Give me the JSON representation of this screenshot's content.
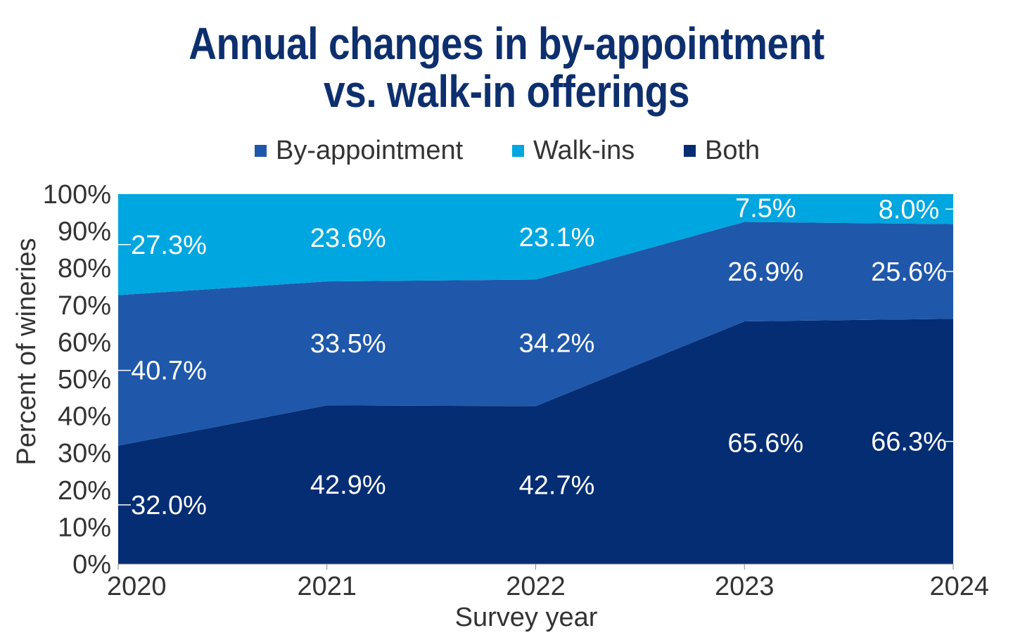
{
  "chart_data": {
    "type": "area",
    "stacked": true,
    "title": [
      "Annual changes in by-appointment",
      "vs. walk-in offerings"
    ],
    "xlabel": "Survey year",
    "ylabel": "Percent of wineries",
    "categories": [
      "2020",
      "2021",
      "2022",
      "2023",
      "2024"
    ],
    "ylim": [
      0,
      100
    ],
    "yticks": [
      "0%",
      "10%",
      "20%",
      "30%",
      "40%",
      "50%",
      "60%",
      "70%",
      "80%",
      "90%",
      "100%"
    ],
    "legend_position": "top",
    "series": [
      {
        "name": "Both",
        "color": "#052d74",
        "values": [
          32.0,
          42.9,
          42.7,
          65.6,
          66.3
        ],
        "labels": [
          "32.0%",
          "42.9%",
          "42.7%",
          "65.6%",
          "66.3%"
        ]
      },
      {
        "name": "By-appointment",
        "color": "#1f58aa",
        "values": [
          40.7,
          33.5,
          34.2,
          26.9,
          25.6
        ],
        "labels": [
          "40.7%",
          "33.5%",
          "34.2%",
          "26.9%",
          "25.6%"
        ]
      },
      {
        "name": "Walk-ins",
        "color": "#00a6df",
        "values": [
          27.3,
          23.6,
          23.1,
          7.5,
          8.0
        ],
        "labels": [
          "27.3%",
          "23.6%",
          "23.1%",
          "7.5%",
          "8.0%"
        ]
      }
    ],
    "legend_order": [
      "By-appointment",
      "Walk-ins",
      "Both"
    ]
  }
}
